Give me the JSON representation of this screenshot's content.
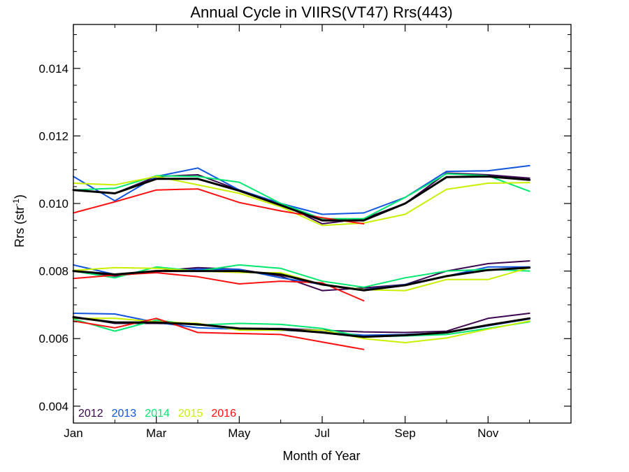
{
  "chart_data": {
    "type": "line",
    "title": "Annual Cycle in VIIRS(VT47) Rrs(443)",
    "xlabel": "Month of Year",
    "ylabel": "Rrs (str",
    "ylabel_sup": "-1",
    "ylabel_close": ")",
    "xlim": [
      1,
      13
    ],
    "ylim": [
      0.0035,
      0.0153
    ],
    "x_ticks": [
      {
        "value": 1,
        "label": "Jan"
      },
      {
        "value": 3,
        "label": "Mar"
      },
      {
        "value": 5,
        "label": "May"
      },
      {
        "value": 7,
        "label": "Jul"
      },
      {
        "value": 9,
        "label": "Sep"
      },
      {
        "value": 11,
        "label": "Nov"
      }
    ],
    "y_ticks": [
      {
        "value": 0.004,
        "label": "0.004"
      },
      {
        "value": 0.006,
        "label": "0.006"
      },
      {
        "value": 0.008,
        "label": "0.008"
      },
      {
        "value": 0.01,
        "label": "0.010"
      },
      {
        "value": 0.012,
        "label": "0.012"
      },
      {
        "value": 0.014,
        "label": "0.014"
      }
    ],
    "grid": false,
    "legend_position": "bottom-left",
    "x": [
      1.0,
      2.0,
      3.0,
      4.0,
      5.0,
      6.0,
      7.0,
      8.0,
      9.0,
      10.0,
      11.0,
      12.0
    ],
    "series": [
      {
        "name": "2012",
        "color": "#3c0550",
        "values": [
          0.0104,
          0.0103,
          0.0108,
          0.01085,
          0.0104,
          0.01,
          0.0094,
          0.00955,
          0.01,
          0.0109,
          0.01085,
          0.01075
        ]
      },
      {
        "name": "2012",
        "color": "#3c0550",
        "values": [
          0.008,
          0.00785,
          0.008,
          0.0081,
          0.00805,
          0.00785,
          0.00742,
          0.0075,
          0.0076,
          0.008,
          0.00822,
          0.0083
        ]
      },
      {
        "name": "2012",
        "color": "#3c0550",
        "values": [
          0.00665,
          0.00645,
          0.00645,
          0.00642,
          0.0063,
          0.0063,
          0.00625,
          0.0062,
          0.00618,
          0.00622,
          0.0066,
          0.00675
        ]
      },
      {
        "name": "2013",
        "color": "#1155e0",
        "values": [
          0.0108,
          0.01008,
          0.0108,
          0.01105,
          0.0104,
          0.01,
          0.00968,
          0.00972,
          0.01018,
          0.01095,
          0.01097,
          0.01112
        ]
      },
      {
        "name": "2013",
        "color": "#1155e0",
        "values": [
          0.00818,
          0.0079,
          0.00798,
          0.00806,
          0.00805,
          0.0078,
          0.0076,
          0.00745,
          0.0076,
          0.00785,
          0.00812,
          0.00812
        ]
      },
      {
        "name": "2013",
        "color": "#1155e0",
        "values": [
          0.00675,
          0.00673,
          0.00648,
          0.00632,
          0.00628,
          0.00625,
          0.0062,
          0.0061,
          0.00612,
          0.00618,
          0.00638,
          0.00658
        ]
      },
      {
        "name": "2014",
        "color": "#00e870",
        "values": [
          0.0104,
          0.01045,
          0.01082,
          0.0108,
          0.01063,
          0.01,
          0.00955,
          0.00955,
          0.01018,
          0.01088,
          0.01082,
          0.01036
        ]
      },
      {
        "name": "2014",
        "color": "#00e870",
        "values": [
          0.008,
          0.0078,
          0.00812,
          0.008,
          0.00818,
          0.00808,
          0.0077,
          0.00752,
          0.0078,
          0.008,
          0.00805,
          0.008
        ]
      },
      {
        "name": "2014",
        "color": "#00e870",
        "values": [
          0.00658,
          0.00622,
          0.00655,
          0.0064,
          0.00645,
          0.00642,
          0.0063,
          0.00605,
          0.00608,
          0.00612,
          0.0063,
          0.0065
        ]
      },
      {
        "name": "2015",
        "color": "#c8f000",
        "values": [
          0.0106,
          0.01055,
          0.0108,
          0.01055,
          0.0103,
          0.0099,
          0.00935,
          0.00942,
          0.00968,
          0.01042,
          0.0106,
          0.01062
        ]
      },
      {
        "name": "2015",
        "color": "#c8f000",
        "values": [
          0.00802,
          0.0081,
          0.00808,
          0.008,
          0.00796,
          0.00795,
          0.0076,
          0.00745,
          0.00742,
          0.00775,
          0.00775,
          0.0081
        ]
      },
      {
        "name": "2015",
        "color": "#c8f000",
        "values": [
          0.0066,
          0.0066,
          0.0065,
          0.00645,
          0.00625,
          0.00625,
          0.00625,
          0.006,
          0.00588,
          0.00602,
          0.00628,
          0.00652
        ]
      },
      {
        "name": "2016",
        "color": "#ff1010",
        "values": [
          0.00972,
          0.01005,
          0.0104,
          0.01043,
          0.01003,
          0.00978,
          0.00958,
          0.0094,
          null,
          null,
          null,
          null
        ]
      },
      {
        "name": "2016",
        "color": "#ff1010",
        "values": [
          0.00778,
          0.00788,
          0.00795,
          0.00783,
          0.00762,
          0.0077,
          0.00765,
          0.00712,
          null,
          null,
          null,
          null
        ]
      },
      {
        "name": "2016",
        "color": "#ff1010",
        "values": [
          0.00652,
          0.00632,
          0.0066,
          0.00618,
          0.00615,
          0.00612,
          0.0059,
          0.00568,
          null,
          null,
          null,
          null
        ]
      },
      {
        "color": "#000000",
        "width": 3,
        "values": [
          0.0104,
          0.0103,
          0.01073,
          0.01073,
          0.01038,
          0.00995,
          0.0095,
          0.0095,
          0.01,
          0.01078,
          0.0108,
          0.0107
        ]
      },
      {
        "color": "#000000",
        "width": 3,
        "values": [
          0.008,
          0.0079,
          0.008,
          0.008,
          0.008,
          0.0079,
          0.0076,
          0.00743,
          0.00758,
          0.00785,
          0.00803,
          0.0081
        ]
      },
      {
        "color": "#000000",
        "width": 3,
        "values": [
          0.00663,
          0.00648,
          0.00648,
          0.00642,
          0.0063,
          0.00628,
          0.00618,
          0.00605,
          0.0061,
          0.00618,
          0.0064,
          0.0066
        ]
      }
    ],
    "legend": [
      {
        "label": "2012",
        "color": "#3c0550"
      },
      {
        "label": "2013",
        "color": "#1155e0"
      },
      {
        "label": "2014",
        "color": "#00e870"
      },
      {
        "label": "2015",
        "color": "#c8f000"
      },
      {
        "label": "2016",
        "color": "#ff1010"
      }
    ]
  }
}
